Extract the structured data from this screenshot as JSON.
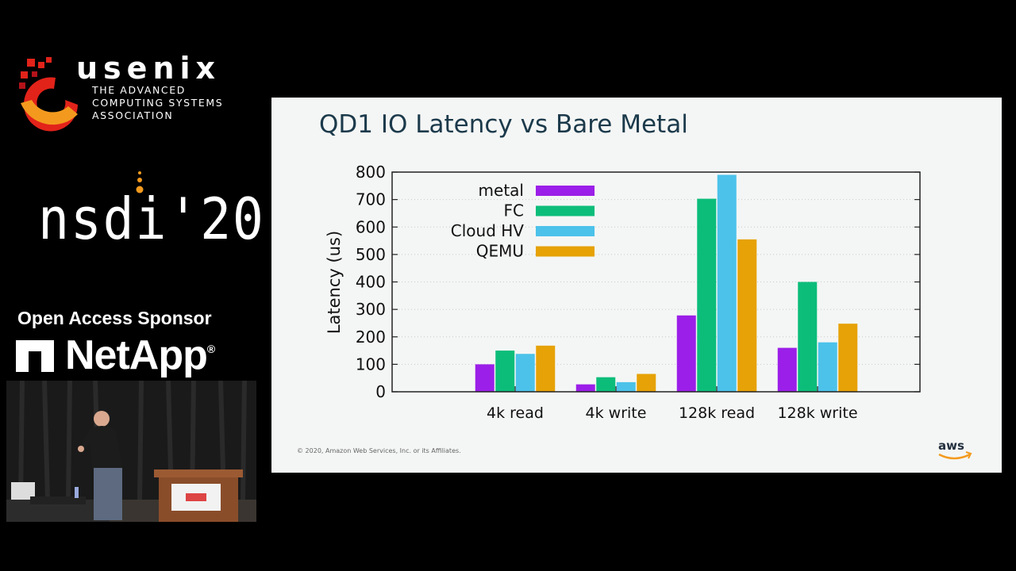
{
  "sidebar": {
    "usenix_name": "usenix",
    "usenix_tagline": [
      "THE ADVANCED",
      "COMPUTING SYSTEMS",
      "ASSOCIATION"
    ],
    "conference": "nsdi'20",
    "sponsor_label": "Open Access Sponsor",
    "sponsor_name": "NetApp"
  },
  "slide": {
    "title": "QD1 IO Latency vs Bare Metal",
    "copyright": "© 2020, Amazon Web Services, Inc. or its Affiliates.",
    "brand": "aws"
  },
  "colors": {
    "metal": "#9b1fe8",
    "FC": "#0cbd7a",
    "Cloud HV": "#4cc2ea",
    "QEMU": "#e6a206",
    "title": "#1c3a4b"
  },
  "chart_data": {
    "type": "bar",
    "categories": [
      "4k read",
      "4k write",
      "128k read",
      "128k write"
    ],
    "series": [
      {
        "name": "metal",
        "values": [
          100,
          27,
          278,
          160
        ]
      },
      {
        "name": "FC",
        "values": [
          150,
          53,
          703,
          400
        ]
      },
      {
        "name": "Cloud HV",
        "values": [
          138,
          35,
          790,
          180
        ]
      },
      {
        "name": "QEMU",
        "values": [
          168,
          65,
          555,
          248
        ]
      }
    ],
    "xlabel": "",
    "ylabel": "Latency (us)",
    "ylim": [
      0,
      800
    ],
    "yticks": [
      "0",
      "100",
      "200",
      "300",
      "400",
      "500",
      "600",
      "700",
      "800"
    ],
    "grid": true,
    "legend": "top-left"
  }
}
